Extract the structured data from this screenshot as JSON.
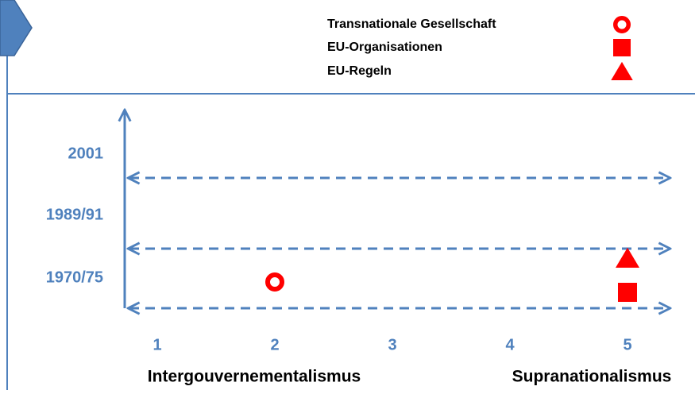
{
  "legend": [
    {
      "label": "Transnationale Gesellschaft",
      "shape": "circle"
    },
    {
      "label": "EU-Organisationen",
      "shape": "square"
    },
    {
      "label": "EU-Regeln",
      "shape": "triangle"
    }
  ],
  "periods": [
    "1970/75",
    "1989/91",
    "2001"
  ],
  "scale": [
    1,
    2,
    3,
    4,
    5
  ],
  "poles": [
    "Intergouvernementalismus",
    "Supranationalismus"
  ],
  "markers": [
    {
      "shape": "circle",
      "x": 2
    },
    {
      "shape": "square",
      "x": 5
    },
    {
      "shape": "triangle",
      "x": 5
    }
  ],
  "color": "#ff0000"
}
